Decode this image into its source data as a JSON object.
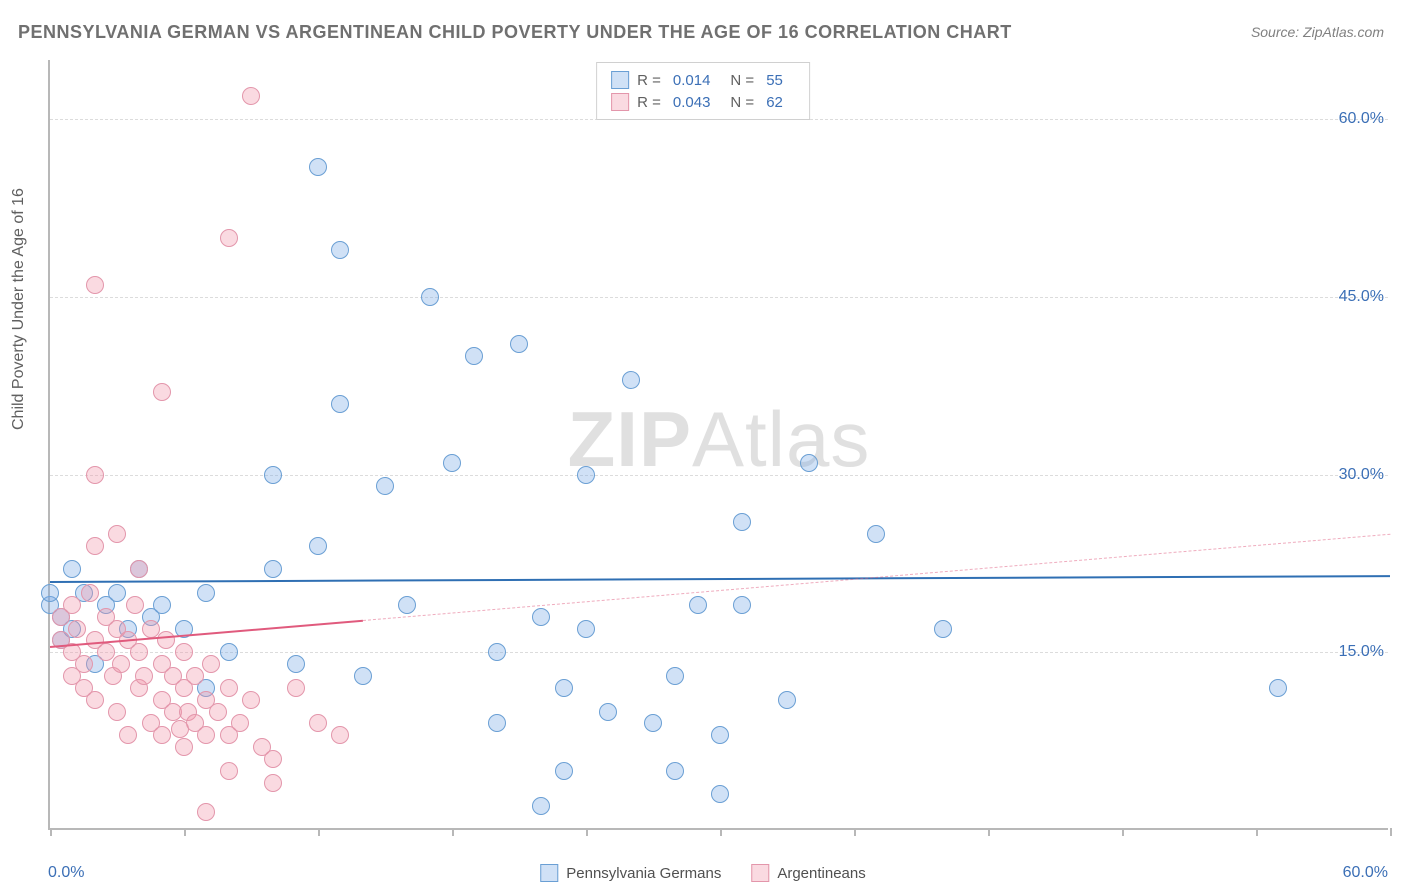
{
  "title": "PENNSYLVANIA GERMAN VS ARGENTINEAN CHILD POVERTY UNDER THE AGE OF 16 CORRELATION CHART",
  "source": "Source: ZipAtlas.com",
  "watermark_zip": "ZIP",
  "watermark_atlas": "Atlas",
  "y_axis_title": "Child Poverty Under the Age of 16",
  "chart": {
    "type": "scatter",
    "xlim": [
      0,
      60
    ],
    "ylim": [
      0,
      65
    ],
    "x_label_min": "0.0%",
    "x_label_max": "60.0%",
    "x_tick_positions": [
      0,
      6,
      12,
      18,
      24,
      30,
      36,
      42,
      48,
      54,
      60
    ],
    "y_gridlines": [
      15,
      30,
      45,
      60
    ],
    "y_tick_labels": [
      "15.0%",
      "30.0%",
      "45.0%",
      "60.0%"
    ],
    "y_tick_color": "#3b6fb6",
    "x_label_color": "#3b6fb6",
    "background_color": "#ffffff",
    "grid_color": "#dcdcdc",
    "axis_color": "#b8b8b8",
    "marker_radius": 9,
    "marker_border_width": 1.5,
    "series": [
      {
        "name": "Pennsylvania Germans",
        "color_fill": "rgba(120,170,230,0.35)",
        "color_stroke": "#6a9fd4",
        "trend_color": "#2f6fb3",
        "trend_width": 2.5,
        "trend_dashed_color": "rgba(47,111,179,0)",
        "R": "0.014",
        "N": "55",
        "trend": {
          "x1": 0,
          "y1": 21,
          "x2": 60,
          "y2": 21.5
        },
        "points": [
          [
            0,
            19
          ],
          [
            0,
            20
          ],
          [
            0.5,
            18
          ],
          [
            0.5,
            16
          ],
          [
            1,
            22
          ],
          [
            1,
            17
          ],
          [
            1.5,
            20
          ],
          [
            2,
            14
          ],
          [
            2.5,
            19
          ],
          [
            3,
            20
          ],
          [
            3.5,
            17
          ],
          [
            4,
            22
          ],
          [
            4.5,
            18
          ],
          [
            5,
            19
          ],
          [
            7,
            12
          ],
          [
            7,
            20
          ],
          [
            8,
            15
          ],
          [
            10,
            30
          ],
          [
            10,
            22
          ],
          [
            11,
            14
          ],
          [
            12,
            56
          ],
          [
            12,
            24
          ],
          [
            13,
            49
          ],
          [
            13,
            36
          ],
          [
            14,
            13
          ],
          [
            15,
            29
          ],
          [
            16,
            19
          ],
          [
            17,
            45
          ],
          [
            18,
            31
          ],
          [
            19,
            40
          ],
          [
            20,
            15
          ],
          [
            20,
            9
          ],
          [
            21,
            41
          ],
          [
            22,
            18
          ],
          [
            22,
            2
          ],
          [
            23,
            12
          ],
          [
            23,
            5
          ],
          [
            24,
            30
          ],
          [
            24,
            17
          ],
          [
            25,
            10
          ],
          [
            26,
            38
          ],
          [
            27,
            9
          ],
          [
            28,
            5
          ],
          [
            28,
            13
          ],
          [
            29,
            19
          ],
          [
            30,
            8
          ],
          [
            30,
            3
          ],
          [
            31,
            26
          ],
          [
            31,
            19
          ],
          [
            33,
            11
          ],
          [
            34,
            31
          ],
          [
            37,
            25
          ],
          [
            40,
            17
          ],
          [
            55,
            12
          ],
          [
            6,
            17
          ]
        ]
      },
      {
        "name": "Argentineans",
        "color_fill": "rgba(240,150,170,0.35)",
        "color_stroke": "#e396ab",
        "trend_color": "#e05a7d",
        "trend_width": 2.5,
        "trend_dashed_color": "rgba(224,90,125,0.5)",
        "R": "0.043",
        "N": "62",
        "trend": {
          "x1": 0,
          "y1": 15.5,
          "x2": 60,
          "y2": 25
        },
        "trend_solid_until_x": 14,
        "points": [
          [
            0.5,
            16
          ],
          [
            0.5,
            18
          ],
          [
            1,
            15
          ],
          [
            1,
            13
          ],
          [
            1,
            19
          ],
          [
            1.2,
            17
          ],
          [
            1.5,
            14
          ],
          [
            1.5,
            12
          ],
          [
            1.8,
            20
          ],
          [
            2,
            16
          ],
          [
            2,
            11
          ],
          [
            2,
            24
          ],
          [
            2,
            30
          ],
          [
            2,
            46
          ],
          [
            2.5,
            15
          ],
          [
            2.5,
            18
          ],
          [
            2.8,
            13
          ],
          [
            3,
            17
          ],
          [
            3,
            10
          ],
          [
            3,
            25
          ],
          [
            3.2,
            14
          ],
          [
            3.5,
            16
          ],
          [
            3.5,
            8
          ],
          [
            3.8,
            19
          ],
          [
            4,
            15
          ],
          [
            4,
            12
          ],
          [
            4,
            22
          ],
          [
            4.2,
            13
          ],
          [
            4.5,
            9
          ],
          [
            4.5,
            17
          ],
          [
            5,
            14
          ],
          [
            5,
            11
          ],
          [
            5,
            37
          ],
          [
            5,
            8
          ],
          [
            5.2,
            16
          ],
          [
            5.5,
            13
          ],
          [
            5.5,
            10
          ],
          [
            5.8,
            8.5
          ],
          [
            6,
            12
          ],
          [
            6,
            15
          ],
          [
            6,
            7
          ],
          [
            6.2,
            10
          ],
          [
            6.5,
            13
          ],
          [
            6.5,
            9
          ],
          [
            7,
            11
          ],
          [
            7,
            8
          ],
          [
            7,
            1.5
          ],
          [
            7.2,
            14
          ],
          [
            7.5,
            10
          ],
          [
            8,
            50
          ],
          [
            8,
            12
          ],
          [
            8,
            8
          ],
          [
            8,
            5
          ],
          [
            8.5,
            9
          ],
          [
            9,
            62
          ],
          [
            9,
            11
          ],
          [
            9.5,
            7
          ],
          [
            10,
            6
          ],
          [
            10,
            4
          ],
          [
            11,
            12
          ],
          [
            12,
            9
          ],
          [
            13,
            8
          ]
        ]
      }
    ]
  },
  "legend_top": {
    "R_label": "R  =",
    "N_label": "N  ="
  },
  "legend_bottom": {
    "series1_label": "Pennsylvania Germans",
    "series2_label": "Argentineans"
  }
}
